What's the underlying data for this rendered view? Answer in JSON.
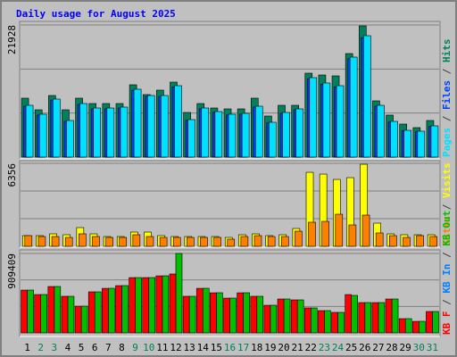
{
  "chart_data": [
    {
      "type": "bar",
      "title": "Daily usage for August 2025",
      "title_color": "#0000ff",
      "ylim": [
        0,
        21928
      ],
      "yticks": [
        21928
      ],
      "legend_separator": "/",
      "series": [
        {
          "name": "Pages",
          "color": "#00e0ff",
          "values": [
            8593,
            7112,
            9630,
            6075,
            8890,
            8149,
            8149,
            8297,
            11260,
            10223,
            10223,
            11853,
            6223,
            8149,
            7556,
            7112,
            7260,
            8445,
            5778,
            7408,
            8001,
            13186,
            12297,
            11853,
            16594,
            20150,
            8593,
            5926,
            4445,
            4297,
            5186
          ]
        },
        {
          "name": "Files",
          "color": "#0040ff",
          "values": [
            8450,
            6980,
            9480,
            5950,
            8740,
            8000,
            8010,
            8150,
            11080,
            10050,
            10060,
            11650,
            6100,
            8000,
            7420,
            6980,
            7130,
            8300,
            5660,
            7270,
            7860,
            12980,
            12100,
            11660,
            16330,
            19830,
            8450,
            5800,
            4350,
            4200,
            5080
          ]
        },
        {
          "name": "Hits",
          "color": "#00805c",
          "values": [
            9779,
            7852,
            10223,
            7852,
            9779,
            8890,
            8890,
            8890,
            12001,
            10371,
            11112,
            12445,
            7408,
            8890,
            8149,
            8001,
            8001,
            9779,
            6815,
            8593,
            8593,
            13927,
            13631,
            13483,
            17187,
            21780,
            9334,
            6964,
            5482,
            4889,
            6075
          ]
        }
      ]
    },
    {
      "type": "bar",
      "ylim": [
        0,
        6356
      ],
      "yticks": [
        6356
      ],
      "legend_separator": "/",
      "series": [
        {
          "name": "Sites",
          "color": "#ff8000",
          "values": [
            820,
            751,
            751,
            683,
            956,
            751,
            683,
            683,
            888,
            751,
            683,
            683,
            683,
            683,
            683,
            546,
            751,
            820,
            751,
            751,
            1161,
            1844,
            1912,
            2459,
            1639,
            2391,
            1025,
            820,
            683,
            820,
            751
          ]
        },
        {
          "name": "Visits",
          "color": "#ffff00",
          "values": [
            820,
            820,
            956,
            888,
            1434,
            956,
            751,
            751,
            1093,
            1093,
            820,
            751,
            751,
            751,
            751,
            683,
            888,
            956,
            820,
            888,
            1366,
            5669,
            5532,
            5123,
            5259,
            6284,
            1776,
            956,
            888,
            888,
            888
          ]
        }
      ]
    },
    {
      "type": "bar",
      "ylim": [
        0,
        909409
      ],
      "yticks": [
        909409
      ],
      "legend_separator": "/",
      "categories": [
        "1",
        "2",
        "3",
        "4",
        "5",
        "6",
        "7",
        "8",
        "9",
        "10",
        "11",
        "12",
        "13",
        "14",
        "15",
        "16",
        "17",
        "18",
        "19",
        "20",
        "21",
        "22",
        "23",
        "24",
        "25",
        "26",
        "27",
        "28",
        "29",
        "30",
        "31"
      ],
      "category_colors": [
        "#000000",
        "#00805c",
        "#00805c",
        "#000000",
        "#000000",
        "#000000",
        "#000000",
        "#000000",
        "#00805c",
        "#00805c",
        "#000000",
        "#000000",
        "#000000",
        "#000000",
        "#000000",
        "#00805c",
        "#00805c",
        "#000000",
        "#000000",
        "#000000",
        "#000000",
        "#000000",
        "#00805c",
        "#00805c",
        "#000000",
        "#000000",
        "#000000",
        "#000000",
        "#000000",
        "#00805c",
        "#00805c"
      ],
      "series": [
        {
          "name": "KB F",
          "color": "#ff0000",
          "values": [
            490000,
            439000,
            531000,
            419000,
            306000,
            470000,
            510000,
            541000,
            633000,
            633000,
            653000,
            674388,
            419000,
            510000,
            459000,
            398000,
            459000,
            419000,
            316000,
            388000,
            378000,
            286000,
            255000,
            235000,
            439000,
            347000,
            347000,
            388000,
            163000,
            132000,
            245000
          ]
        },
        {
          "name": "KB In",
          "color": "#0080ff",
          "values": [
            0,
            0,
            0,
            0,
            0,
            0,
            0,
            0,
            0,
            0,
            0,
            0,
            0,
            0,
            0,
            0,
            0,
            0,
            0,
            0,
            0,
            0,
            0,
            0,
            0,
            0,
            0,
            0,
            0,
            0,
            0
          ]
        },
        {
          "name": "KB Out",
          "color": "#00c000",
          "values": [
            490464,
            439374,
            531336,
            418938,
            306540,
            470028,
            510900,
            541554,
            633516,
            633516,
            653952,
            909409,
            418938,
            510900,
            459810,
            398502,
            459810,
            418938,
            316758,
            388284,
            378066,
            286104,
            255450,
            235014,
            429156,
            347412,
            347412,
            388284,
            163488,
            132834,
            245232
          ]
        }
      ]
    }
  ]
}
